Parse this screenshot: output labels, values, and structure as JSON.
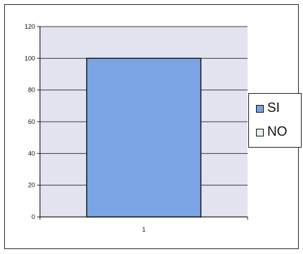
{
  "chart_data": {
    "type": "bar",
    "categories": [
      "1"
    ],
    "series": [
      {
        "name": "SI",
        "values": [
          100
        ],
        "color": "#7aa4e4"
      },
      {
        "name": "NO",
        "values": [
          0
        ],
        "color": "#e6f3e6"
      }
    ],
    "ylim": [
      0,
      120
    ],
    "yticks": [
      0,
      20,
      40,
      60,
      80,
      100,
      120
    ],
    "title": "",
    "xlabel": "",
    "ylabel": "",
    "grid": true,
    "legend_position": "right",
    "plot_background": "#e4e4f0"
  }
}
